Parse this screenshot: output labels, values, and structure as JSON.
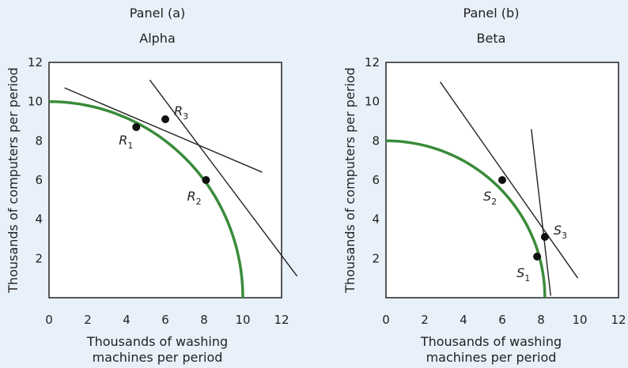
{
  "chart_data": [
    {
      "type": "line",
      "panel_label": "Panel (a)",
      "title": "Alpha",
      "xlabel": [
        "Thousands of washing",
        "machines per period"
      ],
      "ylabel": "Thousands of computers per period",
      "xlim": [
        0,
        12
      ],
      "ylim": [
        0,
        12
      ],
      "xticks": [
        "0",
        "2",
        "4",
        "6",
        "8",
        "10",
        "12"
      ],
      "yticks": [
        "2",
        "4",
        "6",
        "8",
        "10",
        "12"
      ],
      "curve": {
        "color": "#3a8b3a",
        "shape": "bowed-out",
        "x_intercept": 10,
        "y_intercept": 10
      },
      "lines": [
        {
          "x": [
            0.8,
            11
          ],
          "y": [
            10.7,
            6.4
          ]
        },
        {
          "x": [
            5.2,
            12.8
          ],
          "y": [
            11.1,
            1.1
          ]
        }
      ],
      "points": [
        {
          "label": "R",
          "sub": "1",
          "x": 4.5,
          "y": 8.7
        },
        {
          "label": "R",
          "sub": "2",
          "x": 8.1,
          "y": 6.0
        },
        {
          "label": "R",
          "sub": "3",
          "x": 6.0,
          "y": 9.1
        }
      ]
    },
    {
      "type": "line",
      "panel_label": "Panel (b)",
      "title": "Beta",
      "xlabel": [
        "Thousands of washing",
        "machines per period"
      ],
      "ylabel": "Thousands of computers per period",
      "xlim": [
        0,
        12
      ],
      "ylim": [
        0,
        12
      ],
      "xticks": [
        "0",
        "2",
        "4",
        "6",
        "8",
        "10",
        "12"
      ],
      "yticks": [
        "2",
        "4",
        "6",
        "8",
        "10",
        "12"
      ],
      "curve": {
        "color": "#3a8b3a",
        "shape": "bowed-out",
        "x_intercept": 8.2,
        "y_intercept": 8
      },
      "lines": [
        {
          "x": [
            2.8,
            9.9
          ],
          "y": [
            11.0,
            1.0
          ]
        },
        {
          "x": [
            7.5,
            8.5
          ],
          "y": [
            8.6,
            0.1
          ]
        }
      ],
      "points": [
        {
          "label": "S",
          "sub": "1",
          "x": 7.8,
          "y": 2.1
        },
        {
          "label": "S",
          "sub": "2",
          "x": 6.0,
          "y": 6.0
        },
        {
          "label": "S",
          "sub": "3",
          "x": 8.2,
          "y": 3.1
        }
      ]
    }
  ]
}
